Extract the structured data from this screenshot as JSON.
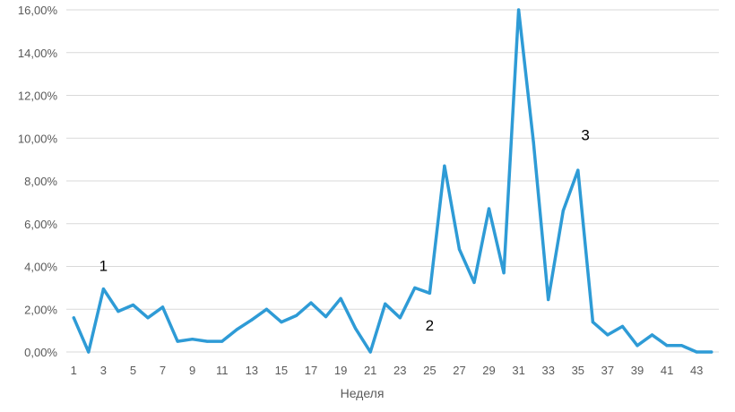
{
  "chart_data": {
    "type": "line",
    "title": "",
    "xlabel": "Неделя",
    "ylabel": "",
    "ylim": [
      0,
      16
    ],
    "y_ticks": [
      {
        "value": 0,
        "label": "0,00%"
      },
      {
        "value": 2,
        "label": "2,00%"
      },
      {
        "value": 4,
        "label": "4,00%"
      },
      {
        "value": 6,
        "label": "6,00%"
      },
      {
        "value": 8,
        "label": "8,00%"
      },
      {
        "value": 10,
        "label": "10,00%"
      },
      {
        "value": 12,
        "label": "12,00%"
      },
      {
        "value": 14,
        "label": "14,00%"
      },
      {
        "value": 16,
        "label": "16,00%"
      }
    ],
    "x_tick_labels": [
      "1",
      "3",
      "5",
      "7",
      "9",
      "11",
      "13",
      "15",
      "17",
      "19",
      "21",
      "23",
      "25",
      "27",
      "29",
      "31",
      "33",
      "35",
      "37",
      "39",
      "41",
      "43"
    ],
    "grid": true,
    "legend": "none",
    "color": "#2e9bd6",
    "series": [
      {
        "x": [
          1,
          2,
          3,
          4,
          5,
          6,
          7,
          8,
          9,
          10,
          11,
          12,
          13,
          14,
          15,
          16,
          17,
          18,
          19,
          20,
          21,
          22,
          23,
          24,
          25,
          26,
          27,
          28,
          29,
          30,
          31,
          32,
          33,
          34,
          35,
          36,
          37,
          38,
          39,
          40,
          41,
          42,
          43,
          44
        ],
        "values": [
          1.6,
          0.0,
          2.95,
          1.9,
          2.2,
          1.6,
          2.1,
          0.5,
          0.6,
          0.5,
          0.5,
          1.05,
          1.5,
          2.0,
          1.4,
          1.7,
          2.3,
          1.65,
          2.5,
          1.1,
          0.0,
          2.25,
          1.6,
          3.0,
          2.75,
          8.7,
          4.8,
          3.25,
          6.7,
          3.7,
          16.0,
          9.8,
          2.45,
          6.6,
          8.5,
          1.4,
          0.8,
          1.2,
          0.3,
          0.8,
          0.3,
          0.3,
          0.0,
          0.0
        ]
      }
    ],
    "annotations": [
      {
        "text": "1",
        "x": 3,
        "y": 3.8
      },
      {
        "text": "2",
        "x": 25,
        "y": 1.0
      },
      {
        "text": "3",
        "x": 35.5,
        "y": 9.9
      }
    ]
  }
}
